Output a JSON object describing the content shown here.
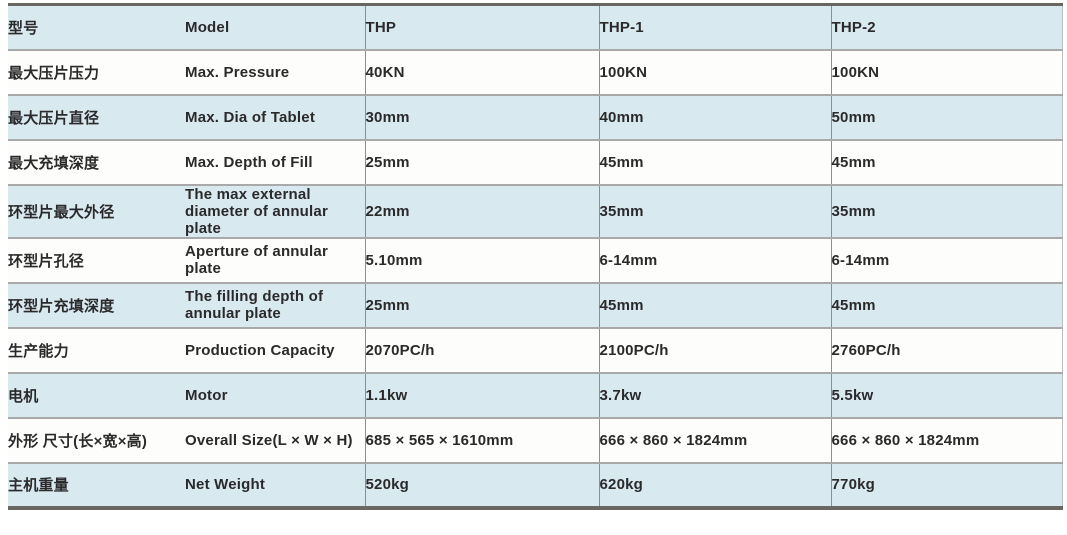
{
  "table": {
    "column_keys": [
      "cn",
      "en",
      "thp",
      "thp1",
      "thp2"
    ],
    "rows": [
      {
        "cn": "型号",
        "en": "Model",
        "thp": "THP",
        "thp1": "THP-1",
        "thp2": "THP-2"
      },
      {
        "cn": "最大压片压力",
        "en": "Max. Pressure",
        "thp": "40KN",
        "thp1": "100KN",
        "thp2": "100KN"
      },
      {
        "cn": "最大压片直径",
        "en": "Max. Dia of Tablet",
        "thp": "30mm",
        "thp1": "40mm",
        "thp2": "50mm"
      },
      {
        "cn": "最大充填深度",
        "en": "Max. Depth of Fill",
        "thp": "25mm",
        "thp1": "45mm",
        "thp2": "45mm"
      },
      {
        "cn": "环型片最大外径",
        "en": "The max external\ndiameter of annular plate",
        "thp": "22mm",
        "thp1": "35mm",
        "thp2": "35mm"
      },
      {
        "cn": "环型片孔径",
        "en": "Aperture of annular\nplate",
        "thp": "5.10mm",
        "thp1": "6-14mm",
        "thp2": "6-14mm"
      },
      {
        "cn": "环型片充填深度",
        "en": "The filling depth of\nannular plate",
        "thp": "25mm",
        "thp1": "45mm",
        "thp2": "45mm"
      },
      {
        "cn": "生产能力",
        "en": "Production Capacity",
        "thp": "2070PC/h",
        "thp1": "2100PC/h",
        "thp2": "2760PC/h"
      },
      {
        "cn": "电机",
        "en": "Motor",
        "thp": "1.1kw",
        "thp1": "3.7kw",
        "thp2": "5.5kw"
      },
      {
        "cn": "外形 尺寸(长×宽×高)",
        "en": "Overall Size(L × W × H)",
        "thp": "685 × 565 × 1610mm",
        "thp1": "666 × 860 × 1824mm",
        "thp2": "666 × 860 × 1824mm"
      },
      {
        "cn": "主机重量",
        "en": "Net Weight",
        "thp": "520kg",
        "thp1": "620kg",
        "thp2": "770kg"
      }
    ]
  },
  "colors": {
    "row_highlight": "#d9e9f0",
    "row_plain": "#fdfdfb",
    "outer_border": "#6a6661",
    "row_separator": "#a9a9a9",
    "column_separator": "#8e8e8e",
    "text": "#2a2a2a"
  }
}
